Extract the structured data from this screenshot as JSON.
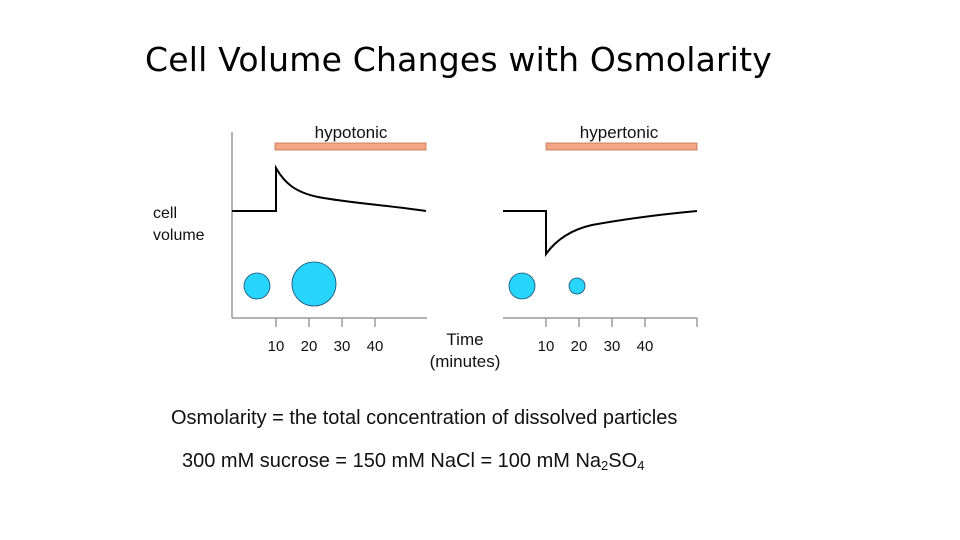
{
  "title": "Cell Volume Changes with Osmolarity",
  "y_axis_label": [
    "cell",
    "volume"
  ],
  "x_axis_label": [
    "Time",
    "(minutes)"
  ],
  "panels": [
    {
      "condition": "hypotonic",
      "ticks": [
        "10",
        "20",
        "30",
        "40"
      ],
      "cell_sizes": {
        "before": "normal",
        "after": "swollen"
      }
    },
    {
      "condition": "hypertonic",
      "ticks": [
        "10",
        "20",
        "30",
        "40"
      ],
      "cell_sizes": {
        "before": "normal",
        "after": "shrunken"
      }
    }
  ],
  "definition": "Osmolarity = the total concentration of dissolved particles",
  "equivalence": {
    "prefix": "300 mM sucrose = 150 mM NaCl = 100 mM Na",
    "sub1": "2",
    "mid": "SO",
    "sub2": "4"
  },
  "colors": {
    "bar": "#f4a582",
    "cell": "#27d4fb",
    "cell_outline": "#1b4f72",
    "line": "#000000",
    "axis": "#9a9a9a"
  }
}
